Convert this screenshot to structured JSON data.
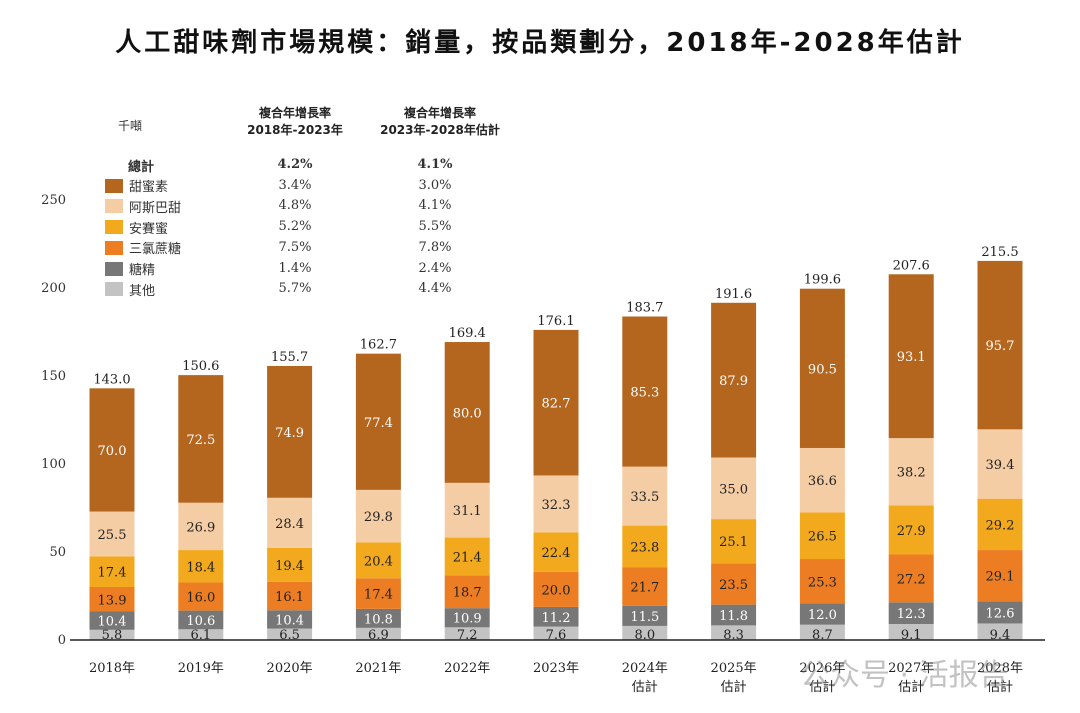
{
  "title": "人工甜味劑市場規模：銷量，按品類劃分，2018年-2028年估計",
  "watermark": "公众号 · 活报告",
  "cagr_headers": [
    "複合年增長率\n2018年-2023年",
    "複合年增長率\n2023年-2028年估計"
  ],
  "legend": [
    {
      "name": "總計",
      "cagr1": "4.2%",
      "cagr2": "4.1%"
    },
    {
      "name": "甜蜜素",
      "cagr1": "3.4%",
      "cagr2": "3.0%",
      "color": "#B4661F"
    },
    {
      "name": "阿斯巴甜",
      "cagr1": "4.8%",
      "cagr2": "4.1%",
      "color": "#F5CDA5"
    },
    {
      "name": "安賽蜜",
      "cagr1": "5.2%",
      "cagr2": "5.5%",
      "color": "#F3A91D"
    },
    {
      "name": "三氯蔗糖",
      "cagr1": "7.5%",
      "cagr2": "7.8%",
      "color": "#EC7D22"
    },
    {
      "name": "糖精",
      "cagr1": "1.4%",
      "cagr2": "2.4%",
      "color": "#777777"
    },
    {
      "name": "其他",
      "cagr1": "5.7%",
      "cagr2": "4.4%",
      "color": "#C3C3C3"
    }
  ],
  "chart_data": {
    "type": "stacked-bar",
    "ylabel": "千噸",
    "ylim": [
      0,
      250
    ],
    "yticks": [
      "0",
      "50",
      "100",
      "150",
      "200",
      "250"
    ],
    "categories": [
      "2018年",
      "2019年",
      "2020年",
      "2021年",
      "2022年",
      "2023年",
      "2024年\n估計",
      "2025年\n估計",
      "2026年\n估計",
      "2027年\n估計",
      "2028年\n估計"
    ],
    "totals": [
      "143.0",
      "150.6",
      "155.7",
      "162.7",
      "169.4",
      "176.1",
      "183.7",
      "191.6",
      "199.6",
      "207.6",
      "215.5"
    ],
    "series": [
      {
        "name": "其他",
        "values": [
          5.8,
          6.1,
          6.5,
          6.9,
          7.2,
          7.6,
          8.0,
          8.3,
          8.7,
          9.1,
          9.4
        ]
      },
      {
        "name": "糖精",
        "values": [
          10.4,
          10.6,
          10.4,
          10.8,
          10.9,
          11.2,
          11.5,
          11.8,
          12.0,
          12.3,
          12.6
        ]
      },
      {
        "name": "三氯蔗糖",
        "values": [
          13.9,
          16.0,
          16.1,
          17.4,
          18.7,
          20.0,
          21.7,
          23.5,
          25.3,
          27.2,
          29.1
        ]
      },
      {
        "name": "安賽蜜",
        "values": [
          17.4,
          18.4,
          19.4,
          20.4,
          21.4,
          22.4,
          23.8,
          25.1,
          26.5,
          27.9,
          29.2
        ]
      },
      {
        "name": "阿斯巴甜",
        "values": [
          25.5,
          26.9,
          28.4,
          29.8,
          31.1,
          32.3,
          33.5,
          35.0,
          36.6,
          38.2,
          39.4
        ]
      },
      {
        "name": "甜蜜素",
        "values": [
          70.0,
          72.5,
          74.9,
          77.4,
          80.0,
          82.7,
          85.3,
          87.9,
          90.5,
          93.1,
          95.7
        ]
      }
    ]
  }
}
